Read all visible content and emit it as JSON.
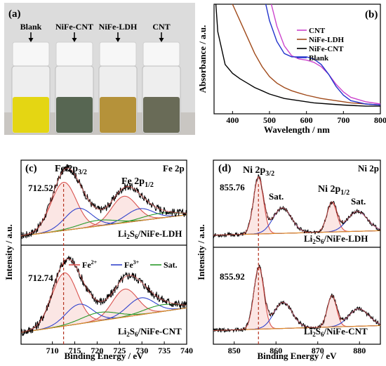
{
  "chart_data": [
    {
      "panel": "(a)",
      "type": "other",
      "photo_labels": [
        "Blank",
        "NiFe-CNT",
        "NiFe-LDH",
        "CNT"
      ],
      "vial_colors": [
        "#e3d400",
        "#4a5a44",
        "#b08a2a",
        "#5d5f4a"
      ]
    },
    {
      "panel": "(b)",
      "type": "line",
      "xlabel": "Wavelength / nm",
      "ylabel": "Absorbance / a.u.",
      "xlim": [
        350,
        800
      ],
      "xticks": [
        400,
        500,
        600,
        700,
        800
      ],
      "legend_position": "top-right",
      "series": [
        {
          "name": "CNT",
          "color": "#cc44cc",
          "x": [
            505,
            520,
            540,
            560,
            580,
            600,
            620,
            640,
            660,
            680,
            700,
            720,
            760,
            800
          ],
          "y": [
            1.0,
            0.8,
            0.62,
            0.53,
            0.5,
            0.49,
            0.47,
            0.43,
            0.36,
            0.27,
            0.2,
            0.15,
            0.11,
            0.09
          ]
        },
        {
          "name": "NiFe-LDH",
          "color": "#a04a1a",
          "x": [
            400,
            420,
            440,
            460,
            480,
            500,
            520,
            540,
            560,
            580,
            600,
            640,
            680,
            720,
            800
          ],
          "y": [
            1.0,
            0.85,
            0.7,
            0.55,
            0.43,
            0.34,
            0.28,
            0.24,
            0.21,
            0.19,
            0.17,
            0.14,
            0.12,
            0.1,
            0.08
          ]
        },
        {
          "name": "NiFe-CNT",
          "color": "#000000",
          "x": [
            355,
            360,
            380,
            400,
            420,
            440,
            460,
            480,
            500,
            540,
            580,
            620,
            660,
            700,
            760,
            800
          ],
          "y": [
            1.0,
            0.75,
            0.45,
            0.37,
            0.32,
            0.28,
            0.24,
            0.21,
            0.18,
            0.14,
            0.12,
            0.1,
            0.09,
            0.08,
            0.07,
            0.07
          ]
        },
        {
          "name": "Blank",
          "color": "#2233cc",
          "x": [
            490,
            500,
            520,
            540,
            560,
            580,
            600,
            620,
            640,
            660,
            680,
            700,
            720,
            760,
            800
          ],
          "y": [
            1.0,
            0.85,
            0.66,
            0.55,
            0.52,
            0.52,
            0.52,
            0.5,
            0.45,
            0.36,
            0.25,
            0.17,
            0.12,
            0.09,
            0.08
          ]
        }
      ]
    },
    {
      "panel": "(c)",
      "type": "line",
      "title": "Fe 2p",
      "xlabel": "Binding Energy / eV",
      "ylabel": "Intensity / a.u.",
      "xlim": [
        703,
        740
      ],
      "xticks": [
        710,
        715,
        720,
        725,
        730,
        735,
        740
      ],
      "legend": [
        "Fe²⁺",
        "Fe³⁺",
        "Sat."
      ],
      "peak_labels_top": [
        "Fe 2p3/2",
        "Fe 2p1/2"
      ],
      "subpanels": [
        {
          "sample": "Li2S6/NiFe-LDH",
          "peak_value": "712.52",
          "marker_x": 712.5,
          "fe2_peaks": [
            [
              712.5,
              2.8,
              1.0
            ],
            [
              726.0,
              2.8,
              0.55
            ]
          ],
          "fe3_peaks": [
            [
              715.8,
              3.0,
              0.42
            ],
            [
              729.5,
              3.0,
              0.25
            ]
          ],
          "sat_peaks": [
            [
              720.0,
              4.0,
              0.12
            ],
            [
              734.0,
              4.0,
              0.1
            ]
          ]
        },
        {
          "sample": "Li2S6/NiFe-CNT",
          "peak_value": "712.74",
          "marker_x": 712.7,
          "fe2_peaks": [
            [
              712.7,
              2.8,
              0.95
            ],
            [
              726.2,
              2.8,
              0.5
            ]
          ],
          "fe3_peaks": [
            [
              716.0,
              3.0,
              0.35
            ],
            [
              729.8,
              3.0,
              0.3
            ]
          ],
          "sat_peaks": [
            [
              720.5,
              4.0,
              0.15
            ],
            [
              734.5,
              4.0,
              0.12
            ]
          ]
        }
      ]
    },
    {
      "panel": "(d)",
      "type": "line",
      "title": "Ni 2p",
      "xlabel": "Binding Energy / eV",
      "ylabel": "Intensity / a.u.",
      "xlim": [
        845,
        885
      ],
      "xticks": [
        850,
        860,
        870,
        880
      ],
      "peak_labels_top": [
        "Ni 2p3/2",
        "Sat.",
        "Ni 2p1/2",
        "Sat."
      ],
      "subpanels": [
        {
          "sample": "Li2S6/NiFe-LDH",
          "peak_value": "855.76",
          "marker_x": 855.8,
          "main_peaks": [
            [
              855.8,
              1.2,
              1.0
            ],
            [
              873.4,
              1.2,
              0.52
            ]
          ],
          "sat_peaks": [
            [
              861.5,
              2.2,
              0.45
            ],
            [
              879.5,
              2.4,
              0.35
            ]
          ]
        },
        {
          "sample": "Li2S6/NiFe-CNT",
          "peak_value": "855.92",
          "marker_x": 855.9,
          "main_peaks": [
            [
              855.9,
              1.2,
              1.0
            ],
            [
              873.4,
              1.1,
              0.5
            ]
          ],
          "sat_peaks": [
            [
              861.7,
              2.2,
              0.42
            ],
            [
              879.8,
              2.4,
              0.28
            ]
          ]
        }
      ]
    }
  ]
}
